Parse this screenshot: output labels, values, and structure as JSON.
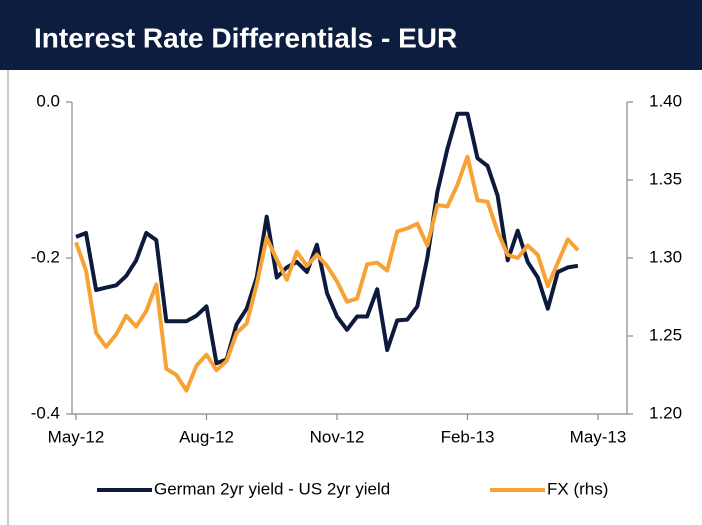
{
  "chart_data": {
    "type": "line",
    "title": "Interest Rate Differentials - EUR",
    "categories": [
      "May-12",
      null,
      null,
      null,
      null,
      null,
      null,
      null,
      null,
      null,
      null,
      null,
      null,
      "Aug-12",
      null,
      null,
      null,
      null,
      null,
      null,
      null,
      null,
      null,
      null,
      null,
      null,
      "Nov-12",
      null,
      null,
      null,
      null,
      null,
      null,
      null,
      null,
      null,
      null,
      null,
      null,
      "Feb-13",
      null,
      null,
      null,
      null,
      null,
      null,
      null,
      null,
      null,
      null,
      null,
      null,
      "May-13"
    ],
    "series": [
      {
        "name": "German 2yr yield - US 2yr yield",
        "color": "#0d1a3d",
        "axis": "y",
        "values": [
          -0.173,
          -0.168,
          -0.241,
          -0.238,
          -0.235,
          -0.223,
          -0.203,
          -0.168,
          -0.177,
          -0.281,
          -0.281,
          -0.281,
          -0.274,
          -0.262,
          -0.335,
          -0.33,
          -0.285,
          -0.265,
          -0.225,
          -0.147,
          -0.225,
          -0.212,
          -0.205,
          -0.218,
          -0.183,
          -0.245,
          -0.275,
          -0.292,
          -0.275,
          -0.275,
          -0.24,
          -0.318,
          -0.28,
          -0.279,
          -0.262,
          -0.2,
          -0.115,
          -0.06,
          -0.015,
          -0.015,
          -0.072,
          -0.082,
          -0.12,
          -0.203,
          -0.165,
          -0.205,
          -0.225,
          -0.265,
          -0.218,
          -0.212,
          -0.21,
          null,
          null
        ]
      },
      {
        "name": "FX (rhs)",
        "color": "#f7a234",
        "axis": "y2",
        "values": [
          1.31,
          1.292,
          1.252,
          1.243,
          1.251,
          1.263,
          1.256,
          1.266,
          1.283,
          1.229,
          1.225,
          1.215,
          1.231,
          1.238,
          1.228,
          1.234,
          1.252,
          1.258,
          1.283,
          1.313,
          1.299,
          1.286,
          1.304,
          1.295,
          1.302,
          1.295,
          1.285,
          1.272,
          1.274,
          1.296,
          1.297,
          1.292,
          1.317,
          1.319,
          1.322,
          1.308,
          1.334,
          1.333,
          1.347,
          1.365,
          1.337,
          1.336,
          1.317,
          1.302,
          1.3,
          1.308,
          1.302,
          1.282,
          1.297,
          1.312,
          1.305,
          null,
          null
        ]
      }
    ],
    "ylim": [
      -0.4,
      0
    ],
    "yticks": [
      {
        "value": 0,
        "label": "0.0"
      },
      -0.2,
      -0.4
    ],
    "y2lim": [
      1.2,
      1.4
    ],
    "y2ticks": [
      {
        "value": 1.4,
        "label": "1.40"
      },
      1.35,
      {
        "value": 1.3,
        "label": "1.30"
      },
      1.25,
      {
        "value": 1.2,
        "label": "1.20"
      }
    ],
    "legend": "bottom"
  }
}
